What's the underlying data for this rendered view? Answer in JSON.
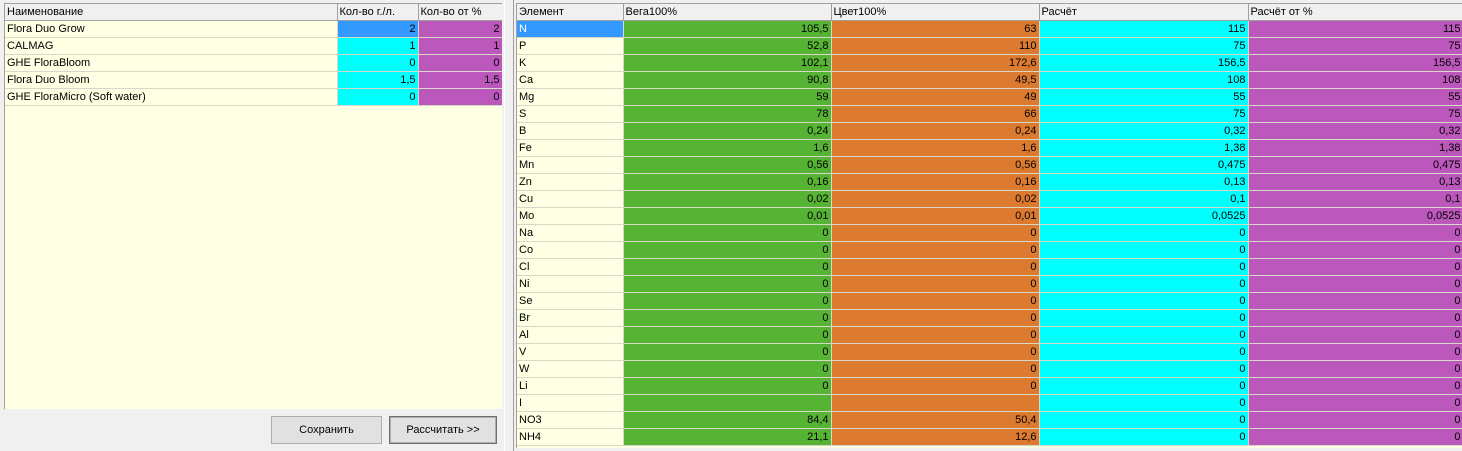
{
  "colors": {
    "selection": "#3399ff",
    "cyan": "#00ffff",
    "magenta": "#bc57bc",
    "green": "#57b334",
    "orange": "#dc7a2f",
    "panel_bg": "#ffffe3"
  },
  "fertilizers": {
    "headers": [
      "Наименование",
      "Кол-во г./л.",
      "Кол-во от %"
    ],
    "rows": [
      [
        "Flora Duo Grow",
        "2",
        "2"
      ],
      [
        "CALMAG",
        "1",
        "1"
      ],
      [
        "GHE FloraBloom",
        "0",
        "0"
      ],
      [
        "Flora Duo Bloom",
        "1,5",
        "1,5"
      ],
      [
        "GHE FloraMicro (Soft water)",
        "0",
        "0"
      ]
    ]
  },
  "buttons": {
    "save": "Сохранить",
    "calculate": "Рассчитать >>"
  },
  "elements": {
    "headers": [
      "Элемент",
      "Вега100%",
      "Цвет100%",
      "Расчёт",
      "Расчёт от %"
    ],
    "rows": [
      [
        "N",
        "105,5",
        "63",
        "115",
        "115"
      ],
      [
        "P",
        "52,8",
        "110",
        "75",
        "75"
      ],
      [
        "K",
        "102,1",
        "172,6",
        "156,5",
        "156,5"
      ],
      [
        "Ca",
        "90,8",
        "49,5",
        "108",
        "108"
      ],
      [
        "Mg",
        "59",
        "49",
        "55",
        "55"
      ],
      [
        "S",
        "78",
        "66",
        "75",
        "75"
      ],
      [
        "B",
        "0,24",
        "0,24",
        "0,32",
        "0,32"
      ],
      [
        "Fe",
        "1,6",
        "1,6",
        "1,38",
        "1,38"
      ],
      [
        "Mn",
        "0,56",
        "0,56",
        "0,475",
        "0,475"
      ],
      [
        "Zn",
        "0,16",
        "0,16",
        "0,13",
        "0,13"
      ],
      [
        "Cu",
        "0,02",
        "0,02",
        "0,1",
        "0,1"
      ],
      [
        "Mo",
        "0,01",
        "0,01",
        "0,0525",
        "0,0525"
      ],
      [
        "Na",
        "0",
        "0",
        "0",
        "0"
      ],
      [
        "Co",
        "0",
        "0",
        "0",
        "0"
      ],
      [
        "Cl",
        "0",
        "0",
        "0",
        "0"
      ],
      [
        "Ni",
        "0",
        "0",
        "0",
        "0"
      ],
      [
        "Se",
        "0",
        "0",
        "0",
        "0"
      ],
      [
        "Br",
        "0",
        "0",
        "0",
        "0"
      ],
      [
        "Al",
        "0",
        "0",
        "0",
        "0"
      ],
      [
        "V",
        "0",
        "0",
        "0",
        "0"
      ],
      [
        "W",
        "0",
        "0",
        "0",
        "0"
      ],
      [
        "Li",
        "0",
        "0",
        "0",
        "0"
      ],
      [
        "I",
        "",
        "",
        "0",
        "0"
      ],
      [
        "NO3",
        "84,4",
        "50,4",
        "0",
        "0"
      ],
      [
        "NH4",
        "21,1",
        "12,6",
        "0",
        "0"
      ]
    ]
  }
}
